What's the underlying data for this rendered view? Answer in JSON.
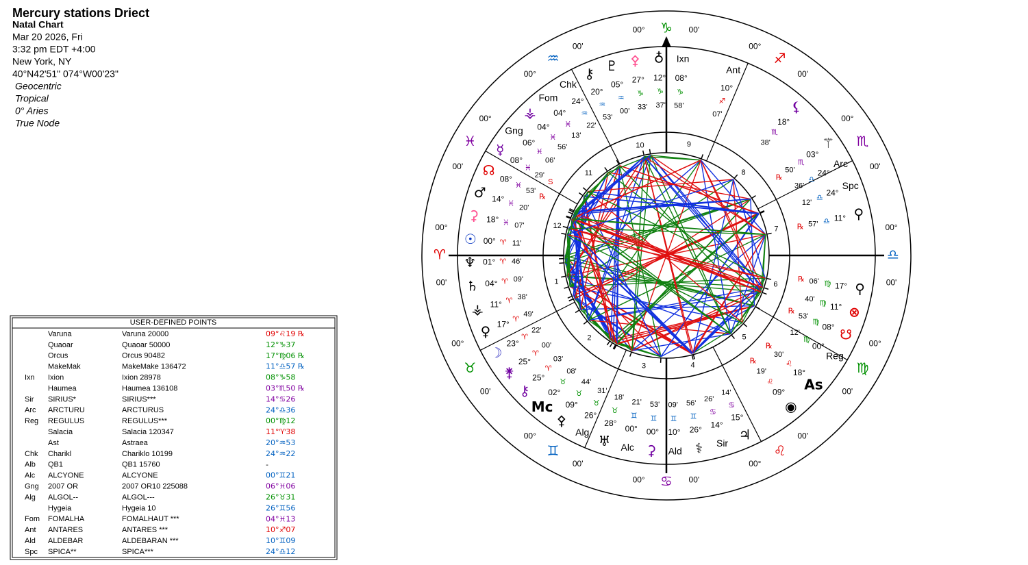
{
  "header": {
    "title": "Mercury stations Driect",
    "subtitle": "Natal Chart",
    "date": "Mar 20 2026, Fri",
    "time": "3:32 pm  EDT +4:00",
    "place": "New York, NY",
    "coords": "40°N42'51\" 074°W00'23\"",
    "settings": [
      "Geocentric",
      "Tropical",
      "0° Aries",
      "True Node"
    ]
  },
  "wheel": {
    "signs": [
      "♈",
      "♉",
      "♊",
      "♋",
      "♌",
      "♍",
      "♎",
      "♏",
      "♐",
      "♑",
      "♒",
      "♓"
    ],
    "sign_colors": [
      "#e00000",
      "#009000",
      "#0060c0",
      "#8000a0"
    ],
    "cusp_deg": "00°",
    "cusp_min": "00'",
    "house_numbers": [
      1,
      2,
      3,
      4,
      5,
      6,
      7,
      8,
      9,
      10,
      11,
      12
    ],
    "points": [
      {
        "glyph": "☉",
        "deg": "00°",
        "sign": "♈",
        "min": "11'",
        "color": "#0030c0"
      },
      {
        "glyph": "♆",
        "deg": "01°",
        "sign": "♈",
        "min": "46'"
      },
      {
        "glyph": "♄",
        "deg": "04°",
        "sign": "♈",
        "min": "09'"
      },
      {
        "glyph": "⚶",
        "deg": "11°",
        "sign": "♈",
        "min": "38'"
      },
      {
        "glyph": "♀",
        "deg": "17°",
        "sign": "♈",
        "min": "49'"
      },
      {
        "glyph": "☽",
        "deg": "23°",
        "sign": "♈",
        "min": "22'",
        "color": "#3030c0"
      },
      {
        "glyph": "⚵",
        "deg": "25°",
        "sign": "♈",
        "min": "00'",
        "color": "#7000a0"
      },
      {
        "glyph": "⚷",
        "deg": "25°",
        "sign": "♈",
        "min": "03'",
        "color": "#7000a0"
      },
      {
        "glyph": "Mc",
        "deg": "02°",
        "sign": "♉",
        "min": "08'"
      },
      {
        "glyph": "⚴",
        "deg": "09°",
        "sign": "♉",
        "min": "44'"
      },
      {
        "label": "Alg",
        "deg": "26°",
        "sign": "♉",
        "min": "31'"
      },
      {
        "glyph": "♅",
        "deg": "28°",
        "sign": "♉",
        "min": "18'"
      },
      {
        "label": "Alc",
        "deg": "00°",
        "sign": "♊",
        "min": "21'"
      },
      {
        "glyph": "⚳",
        "deg": "00°",
        "sign": "♊",
        "min": "53'",
        "color": "#7000a0"
      },
      {
        "label": "Ald",
        "deg": "10°",
        "sign": "♊",
        "min": "09'"
      },
      {
        "glyph": "⚕",
        "deg": "26°",
        "sign": "♊",
        "min": "56'"
      },
      {
        "label": "Sir",
        "deg": "14°",
        "sign": "♋",
        "min": "26'"
      },
      {
        "glyph": "♃",
        "deg": "15°",
        "sign": "♋",
        "min": "14'"
      },
      {
        "glyph": "◉",
        "deg": "09°",
        "sign": "♌",
        "min": "19'",
        "flag": "℞"
      },
      {
        "glyph": "As",
        "deg": "18°",
        "sign": "♌",
        "min": "30'",
        "flag": "℞"
      },
      {
        "label": "Reg",
        "deg": "00°",
        "sign": "♍",
        "min": "12'"
      },
      {
        "glyph": "☋",
        "deg": "08°",
        "sign": "♍",
        "min": "53'",
        "flag": "℞",
        "color": "#e00000"
      },
      {
        "glyph": "⊗",
        "deg": "11°",
        "sign": "♍",
        "min": "40'",
        "color": "#e00000"
      },
      {
        "glyph": "⚲",
        "deg": "17°",
        "sign": "♍",
        "min": "06'",
        "flag": "℞"
      },
      {
        "glyph": "⚲",
        "deg": "11°",
        "sign": "♎",
        "min": "57'",
        "flag": "℞"
      },
      {
        "label": "Spc",
        "deg": "24°",
        "sign": "♎",
        "min": "12'"
      },
      {
        "label": "Arc",
        "deg": "24°",
        "sign": "♎",
        "min": "36'"
      },
      {
        "glyph": "⚚",
        "deg": "03°",
        "sign": "♏",
        "min": "50'",
        "flag": "℞"
      },
      {
        "glyph": "⚸",
        "deg": "18°",
        "sign": "♏",
        "min": "38'",
        "color": "#7000a0"
      },
      {
        "label": "Ant",
        "deg": "10°",
        "sign": "♐",
        "min": "07'"
      },
      {
        "label": "Ixn",
        "deg": "08°",
        "sign": "♑",
        "min": "58'"
      },
      {
        "glyph": "♁",
        "deg": "12°",
        "sign": "♑",
        "min": "37'"
      },
      {
        "glyph": "⚴",
        "deg": "27°",
        "sign": "♑",
        "min": "33'",
        "color": "#ff5090"
      },
      {
        "glyph": "♇",
        "deg": "05°",
        "sign": "♒",
        "min": "00'"
      },
      {
        "glyph": "⚷",
        "deg": "20°",
        "sign": "♒",
        "min": "53'"
      },
      {
        "label": "Chk",
        "deg": "24°",
        "sign": "♒",
        "min": "22'"
      },
      {
        "label": "Fom",
        "deg": "04°",
        "sign": "♓",
        "min": "13'"
      },
      {
        "glyph": "⚶",
        "deg": "04°",
        "sign": "♓",
        "min": "56'",
        "color": "#7000a0"
      },
      {
        "label": "Gng",
        "deg": "06°",
        "sign": "♓",
        "min": "06'"
      },
      {
        "glyph": "☿",
        "deg": "08°",
        "sign": "♓",
        "min": "29'",
        "flag": "S",
        "color": "#7000a0"
      },
      {
        "glyph": "☊",
        "deg": "08°",
        "sign": "♓",
        "min": "53'",
        "flag": "℞",
        "color": "#e00000"
      },
      {
        "glyph": "♂",
        "deg": "14°",
        "sign": "♓",
        "min": "20'"
      },
      {
        "glyph": "⚳",
        "deg": "18°",
        "sign": "♓",
        "min": "07'",
        "color": "#ff5090"
      }
    ]
  },
  "table": {
    "title": "USER-DEFINED POINTS",
    "rows": [
      {
        "name": "Varuna",
        "full": "Varuna 20000",
        "pos": "09°♌19 ℞",
        "color": "#e00000"
      },
      {
        "name": "Quaoar",
        "full": "Quaoar 50000",
        "pos": "12°♑37",
        "color": "#009000"
      },
      {
        "name": "Orcus",
        "full": "Orcus 90482",
        "pos": "17°♍06 ℞",
        "color": "#009000"
      },
      {
        "name": "MakeMak",
        "full": "MakeMake 136472",
        "pos": "11°♎57 ℞",
        "color": "#0060c0"
      },
      {
        "code": "Ixn",
        "name": "Ixion",
        "full": "Ixion 28978",
        "pos": "08°♑58",
        "color": "#009000"
      },
      {
        "name": "Haumea",
        "full": "Haumea 136108",
        "pos": "03°♏50 ℞",
        "color": "#8000a0"
      },
      {
        "code": "Sir",
        "name": "SIRIUS*",
        "full": "SIRIUS***",
        "pos": "14°♋26",
        "color": "#8000a0"
      },
      {
        "code": "Arc",
        "name": "ARCTURU",
        "full": "ARCTURUS",
        "pos": "24°♎36",
        "color": "#0060c0"
      },
      {
        "code": "Reg",
        "name": "REGULUS",
        "full": "REGULUS***",
        "pos": "00°♍12",
        "color": "#009000"
      },
      {
        "name": "Salacia",
        "full": "Salacia 120347",
        "pos": "11°♈38",
        "color": "#e00000"
      },
      {
        "name": "Ast",
        "full": "Astraea",
        "pos": "20°♒53",
        "color": "#0060c0"
      },
      {
        "code": "Chk",
        "name": "Charikl",
        "full": "Chariklo 10199",
        "pos": "24°♒22",
        "color": "#0060c0"
      },
      {
        "code": "Alb",
        "name": "QB1",
        "full": "QB1 15760",
        "pos": "-",
        "color": "#000000"
      },
      {
        "code": "Alc",
        "name": "ALCYONE",
        "full": "ALCYONE",
        "pos": "00°♊21",
        "color": "#0060c0"
      },
      {
        "code": "Gng",
        "name": "2007 OR",
        "full": "2007 OR10 225088",
        "pos": "06°♓06",
        "color": "#8000a0"
      },
      {
        "code": "Alg",
        "name": "ALGOL--",
        "full": "ALGOL---",
        "pos": "26°♉31",
        "color": "#009000"
      },
      {
        "name": "Hygeia",
        "full": "Hygeia 10",
        "pos": "26°♊56",
        "color": "#0060c0"
      },
      {
        "code": "Fom",
        "name": "FOMALHA",
        "full": "FOMALHAUT ***",
        "pos": "04°♓13",
        "color": "#8000a0"
      },
      {
        "code": "Ant",
        "name": "ANTARES",
        "full": "ANTARES ***",
        "pos": "10°♐07",
        "color": "#e00000"
      },
      {
        "code": "Ald",
        "name": "ALDEBAR",
        "full": "ALDEBARAN ***",
        "pos": "10°♊09",
        "color": "#0060c0"
      },
      {
        "code": "Spc",
        "name": "SPICA**",
        "full": "SPICA***",
        "pos": "24°♎12",
        "color": "#0060c0"
      }
    ]
  }
}
